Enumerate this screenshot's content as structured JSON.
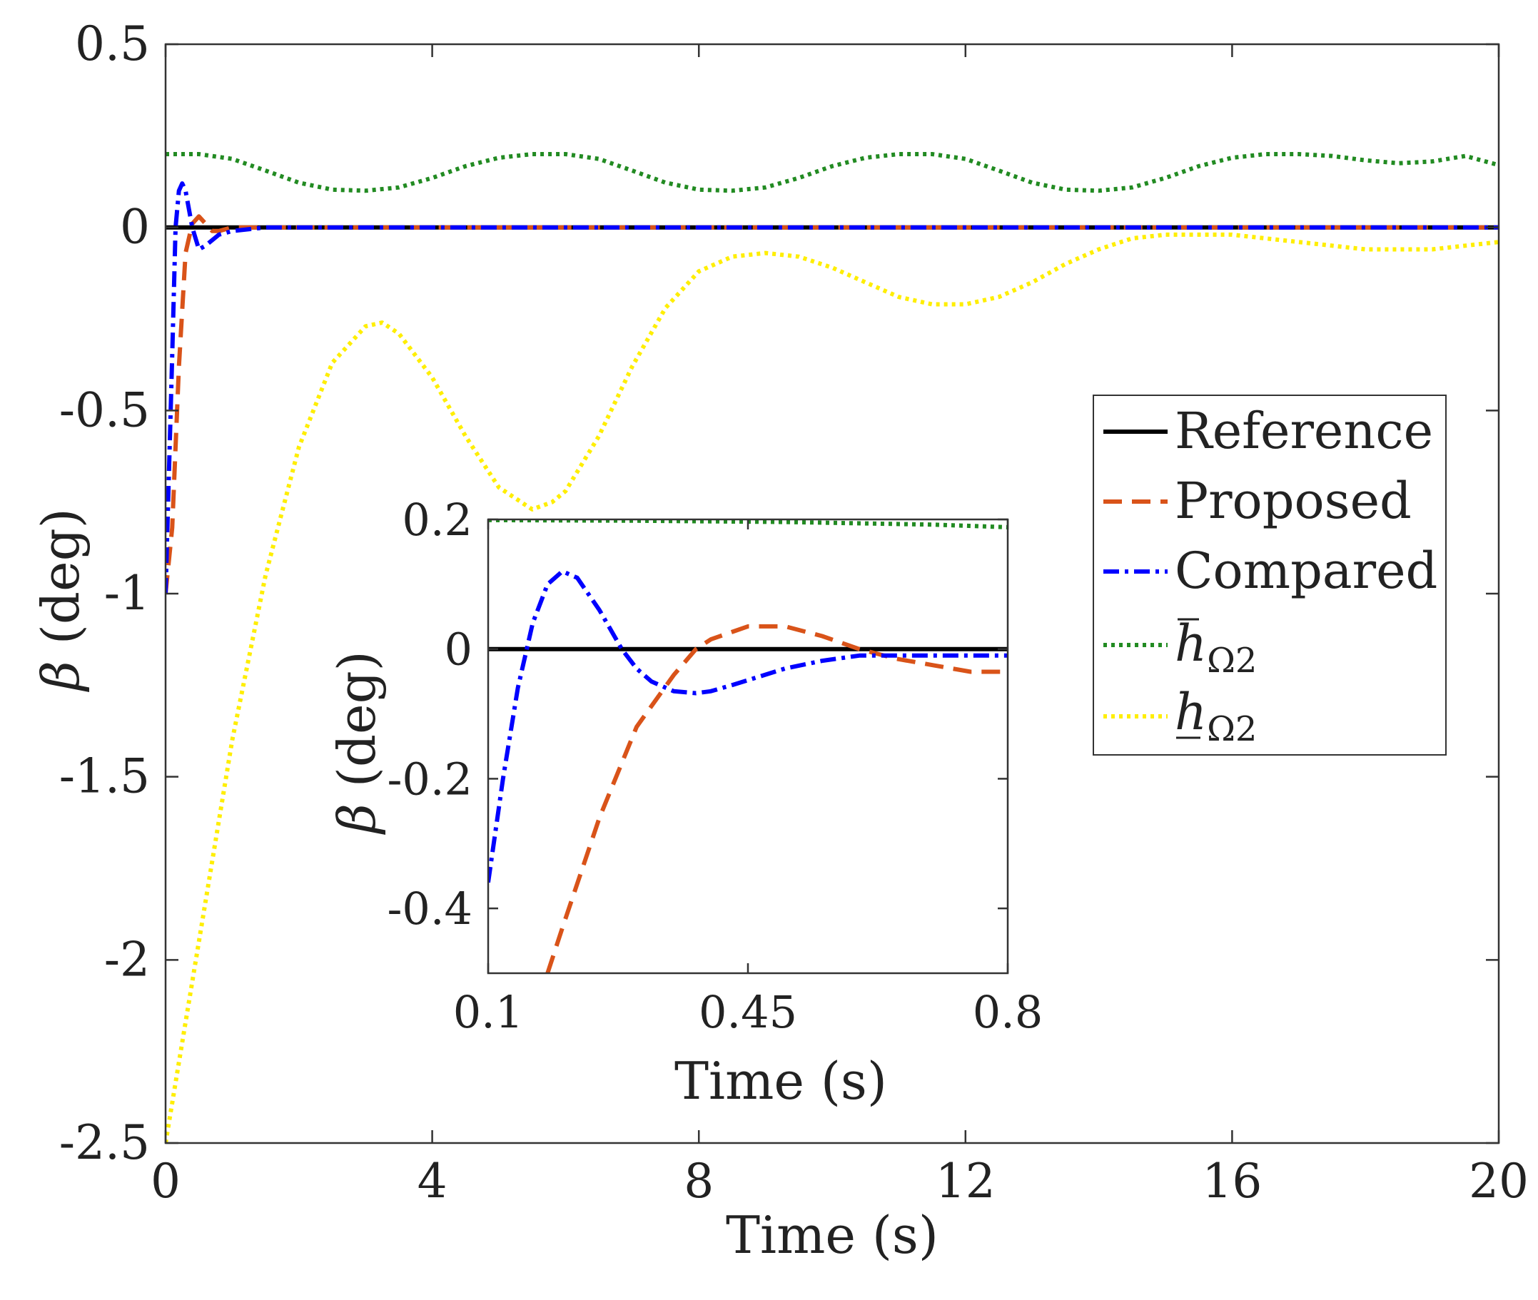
{
  "chart_data": [
    {
      "id": "main",
      "type": "line",
      "xlabel": "Time (s)",
      "ylabel_symbol": "β",
      "ylabel_unit": "(deg)",
      "xlim": [
        0,
        20
      ],
      "ylim": [
        -2.5,
        0.5
      ],
      "xticks": [
        0,
        4,
        8,
        12,
        16,
        20
      ],
      "xtick_labels": [
        "0",
        "4",
        "8",
        "12",
        "16",
        "20"
      ],
      "yticks": [
        0.5,
        0,
        -0.5,
        -1,
        -1.5,
        -2,
        -2.5
      ],
      "ytick_labels": [
        "0.5",
        "0",
        "-0.5",
        "-1",
        "-1.5",
        "-2",
        "-2.5"
      ],
      "grid": false,
      "legend_position": "right-middle",
      "series": [
        {
          "name": "Reference",
          "color": "#000000",
          "dash": "solid",
          "x": [
            0,
            20
          ],
          "y": [
            0,
            0
          ]
        },
        {
          "name": "Proposed",
          "color": "#d95319",
          "dash": "dashed",
          "x": [
            0,
            0.1,
            0.2,
            0.3,
            0.4,
            0.5,
            0.6,
            0.7,
            0.8,
            1.0,
            1.5,
            2,
            20
          ],
          "y": [
            -1.0,
            -0.82,
            -0.38,
            -0.07,
            0.01,
            0.03,
            0.01,
            -0.01,
            -0.01,
            0,
            0,
            0,
            0
          ]
        },
        {
          "name": "Compared",
          "color": "#0000ff",
          "dash": "dashdot",
          "x": [
            0,
            0.1,
            0.15,
            0.2,
            0.25,
            0.3,
            0.35,
            0.4,
            0.5,
            0.6,
            0.8,
            1.0,
            1.5,
            2,
            20
          ],
          "y": [
            -1.0,
            -0.35,
            0.0,
            0.1,
            0.12,
            0.1,
            0.05,
            0.0,
            -0.06,
            -0.05,
            -0.02,
            -0.01,
            0,
            0,
            0
          ]
        },
        {
          "name": "h̄Ω2",
          "label_base": "h",
          "label_sub": "Ω2",
          "label_mark": "overline",
          "color": "#228b22",
          "dash": "dotted",
          "x": [
            0,
            0.5,
            1,
            1.5,
            2,
            2.5,
            3,
            3.5,
            4,
            4.5,
            5,
            5.5,
            6,
            6.5,
            7,
            7.5,
            8,
            8.5,
            9,
            9.5,
            10,
            10.5,
            11,
            11.5,
            12,
            12.5,
            13,
            13.5,
            14,
            14.5,
            15,
            15.5,
            16,
            16.5,
            17,
            17.5,
            18,
            18.5,
            19,
            19.5,
            20
          ],
          "y": [
            0.2,
            0.2,
            0.187,
            0.155,
            0.122,
            0.103,
            0.1,
            0.109,
            0.135,
            0.167,
            0.19,
            0.2,
            0.2,
            0.187,
            0.155,
            0.122,
            0.103,
            0.1,
            0.109,
            0.135,
            0.167,
            0.19,
            0.2,
            0.2,
            0.187,
            0.155,
            0.122,
            0.103,
            0.1,
            0.109,
            0.135,
            0.167,
            0.19,
            0.2,
            0.2,
            0.195,
            0.183,
            0.175,
            0.18,
            0.195,
            0.17
          ]
        },
        {
          "name": "h̲Ω2",
          "label_base": "h",
          "label_sub": "Ω2",
          "label_mark": "underline",
          "color": "#ffee00",
          "dash": "dotted",
          "x": [
            0,
            0.5,
            1,
            1.5,
            2,
            2.5,
            3,
            3.25,
            3.5,
            4,
            4.5,
            5,
            5.5,
            5.8,
            6,
            6.5,
            7,
            7.5,
            8,
            8.5,
            9,
            9.5,
            10,
            10.5,
            11,
            11.5,
            12,
            12.5,
            13,
            13.5,
            14,
            14.5,
            15,
            15.5,
            16,
            16.5,
            17,
            17.5,
            18,
            18.5,
            19,
            19.5,
            20
          ],
          "y": [
            -2.5,
            -1.95,
            -1.4,
            -0.95,
            -0.6,
            -0.37,
            -0.27,
            -0.26,
            -0.29,
            -0.41,
            -0.57,
            -0.71,
            -0.77,
            -0.75,
            -0.72,
            -0.57,
            -0.38,
            -0.22,
            -0.12,
            -0.08,
            -0.07,
            -0.08,
            -0.11,
            -0.15,
            -0.19,
            -0.21,
            -0.21,
            -0.19,
            -0.15,
            -0.1,
            -0.06,
            -0.03,
            -0.02,
            -0.02,
            -0.02,
            -0.03,
            -0.04,
            -0.05,
            -0.06,
            -0.06,
            -0.06,
            -0.05,
            -0.04
          ]
        }
      ]
    },
    {
      "id": "inset",
      "type": "line",
      "xlabel": "Time (s)",
      "ylabel_symbol": "β",
      "ylabel_unit": "(deg)",
      "xlim": [
        0.1,
        0.8
      ],
      "ylim": [
        -0.5,
        0.2
      ],
      "xticks": [
        0.1,
        0.45,
        0.8
      ],
      "xtick_labels": [
        "0.1",
        "0.45",
        "0.8"
      ],
      "yticks": [
        0.2,
        0,
        -0.2,
        -0.4
      ],
      "ytick_labels": [
        "0.2",
        "0",
        "-0.2",
        "-0.4"
      ],
      "grid": false,
      "series": [
        {
          "name": "Reference",
          "color": "#000000",
          "dash": "solid",
          "x": [
            0.1,
            0.8
          ],
          "y": [
            0,
            0
          ]
        },
        {
          "name": "Proposed",
          "color": "#d95319",
          "dash": "dashed",
          "x": [
            0.18,
            0.2,
            0.25,
            0.3,
            0.35,
            0.38,
            0.4,
            0.45,
            0.5,
            0.55,
            0.6,
            0.65,
            0.7,
            0.75,
            0.8
          ],
          "y": [
            -0.5,
            -0.43,
            -0.26,
            -0.12,
            -0.04,
            0.0,
            0.015,
            0.035,
            0.035,
            0.02,
            0.0,
            -0.015,
            -0.025,
            -0.035,
            -0.035
          ]
        },
        {
          "name": "Compared",
          "color": "#0000ff",
          "dash": "dashdot",
          "x": [
            0.1,
            0.12,
            0.14,
            0.16,
            0.18,
            0.2,
            0.22,
            0.25,
            0.28,
            0.3,
            0.32,
            0.35,
            0.38,
            0.4,
            0.43,
            0.45,
            0.5,
            0.55,
            0.6,
            0.65,
            0.7,
            0.75,
            0.8
          ],
          "y": [
            -0.36,
            -0.2,
            -0.06,
            0.04,
            0.1,
            0.12,
            0.11,
            0.06,
            0.0,
            -0.03,
            -0.05,
            -0.065,
            -0.068,
            -0.065,
            -0.055,
            -0.048,
            -0.03,
            -0.018,
            -0.01,
            -0.01,
            -0.01,
            -0.01,
            -0.01
          ]
        },
        {
          "name": "h̄Ω2",
          "color": "#228b22",
          "dash": "dotted",
          "x": [
            0.1,
            0.3,
            0.5,
            0.7,
            0.8
          ],
          "y": [
            0.199,
            0.198,
            0.196,
            0.192,
            0.188
          ]
        }
      ]
    }
  ]
}
